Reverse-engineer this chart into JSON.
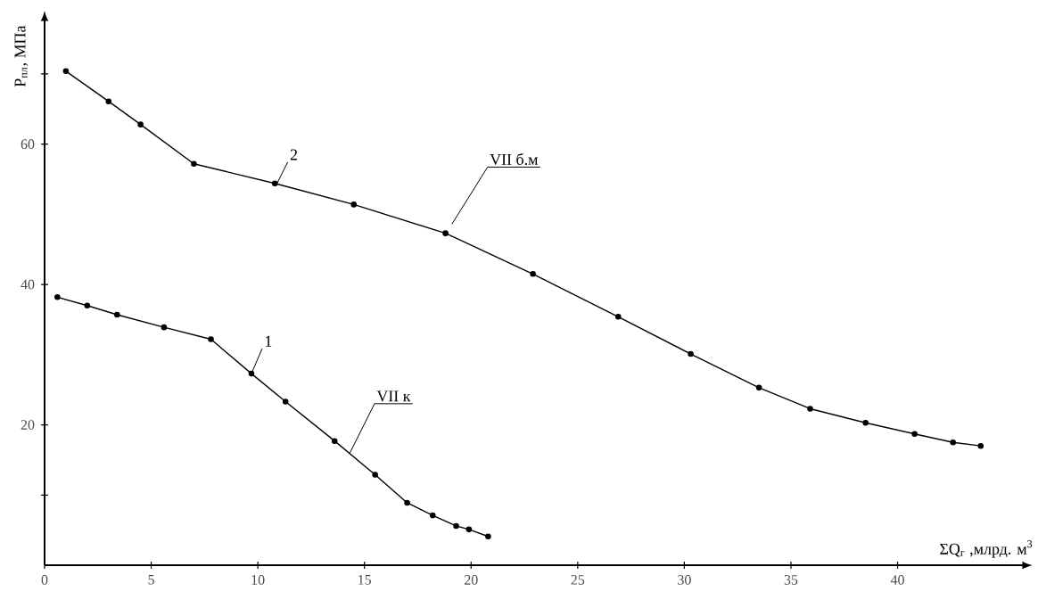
{
  "chart_data": {
    "type": "line",
    "xlabel": "ΣQ$_{г}$ ,млрд. м$^{3}$",
    "ylabel": "P$_{пл}$, МПа",
    "xlim": [
      0,
      46
    ],
    "ylim": [
      0,
      78
    ],
    "xticks": [
      0,
      5,
      10,
      15,
      20,
      25,
      30,
      35,
      40
    ],
    "yticks": [
      {
        "value": 10,
        "label": null
      },
      20,
      40,
      60,
      {
        "value": 70,
        "label": null
      }
    ],
    "marker": "circle",
    "line_style": "solid",
    "series": [
      {
        "color": "#000000",
        "x": [
          1.0,
          3.0,
          4.5,
          7.0,
          10.8,
          14.5,
          18.8,
          22.9,
          26.9,
          30.3,
          33.5,
          35.9,
          38.5,
          40.8,
          42.6,
          43.9
        ],
        "values": [
          70.4,
          66.1,
          62.8,
          57.2,
          54.4,
          51.4,
          47.3,
          41.5,
          35.4,
          30.1,
          25.3,
          22.3,
          20.3,
          18.7,
          17.5,
          17.0
        ]
      },
      {
        "color": "#000000",
        "x": [
          0.6,
          2.0,
          3.4,
          5.6,
          7.8,
          9.7,
          11.3,
          13.6,
          15.5,
          17.0,
          18.2,
          19.3,
          19.9,
          20.8
        ],
        "values": [
          38.2,
          37.0,
          35.7,
          33.9,
          32.2,
          27.3,
          23.3,
          17.7,
          12.9,
          8.9,
          7.1,
          5.6,
          5.1,
          4.1
        ]
      }
    ],
    "annotations": [
      {
        "text": "2",
        "x": 10.9,
        "y": 54.4
      },
      {
        "text": "VII б.м",
        "x": 19.1,
        "y": 48.6
      },
      {
        "text": "1",
        "x": 9.7,
        "y": 27.3
      },
      {
        "text": "VII к",
        "x": 14.3,
        "y": 15.9
      }
    ]
  }
}
